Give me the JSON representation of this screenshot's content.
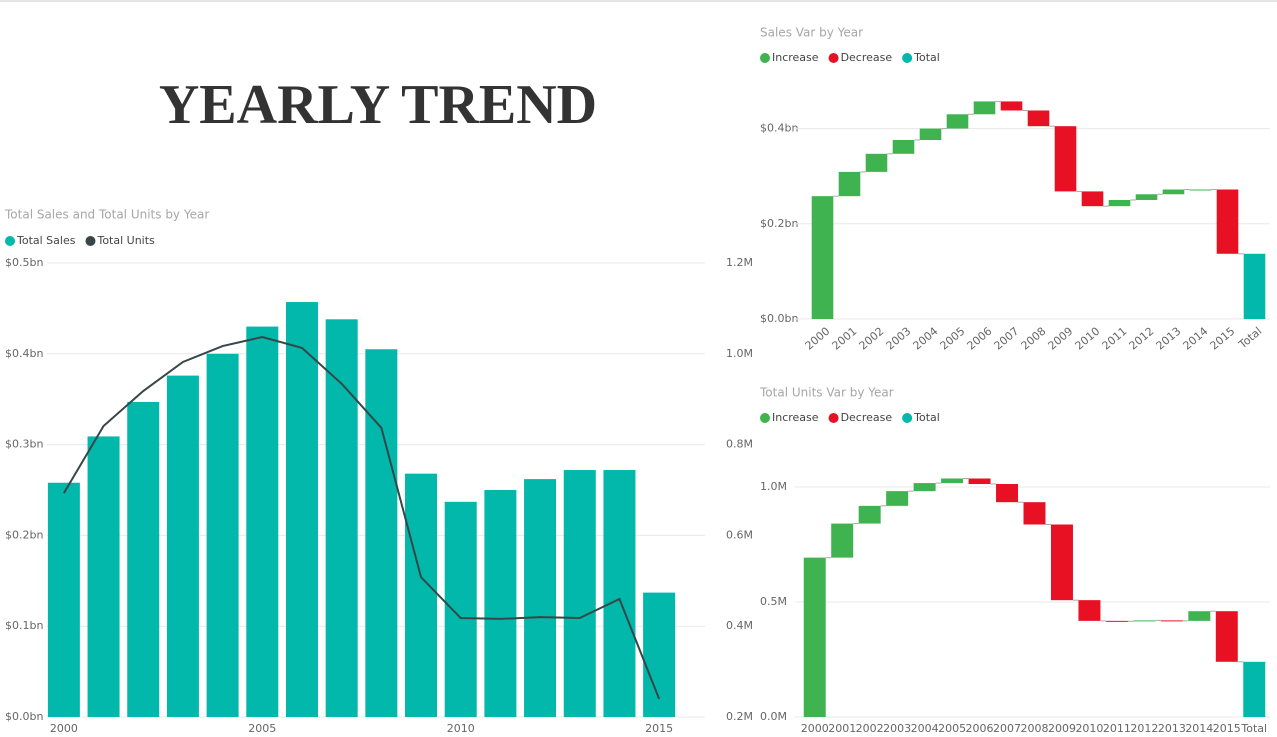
{
  "page_title": "YEARLY TREND",
  "chart_data": [
    {
      "type": "bar_line",
      "title": "Total Sales and Total Units by Year",
      "x": [
        2000,
        2001,
        2002,
        2003,
        2004,
        2005,
        2006,
        2007,
        2008,
        2009,
        2010,
        2011,
        2012,
        2013,
        2014,
        2015
      ],
      "xlim": [
        1999.6,
        2015.4
      ],
      "xticks": [
        2000,
        2005,
        2010,
        2015
      ],
      "series": [
        {
          "name": "Total Sales",
          "type": "bar",
          "color": "#01b8aa",
          "values": [
            0.258,
            0.309,
            0.347,
            0.376,
            0.4,
            0.43,
            0.457,
            0.438,
            0.405,
            0.268,
            0.237,
            0.25,
            0.262,
            0.272,
            0.272,
            0.137
          ]
        },
        {
          "name": "Total Units",
          "type": "line",
          "axis": "y2",
          "color": "#374649",
          "values": [
            0.693,
            0.841,
            0.918,
            0.982,
            1.017,
            1.037,
            1.013,
            0.934,
            0.837,
            0.508,
            0.418,
            0.416,
            0.42,
            0.418,
            0.46,
            0.24
          ]
        }
      ],
      "ylim": [
        0,
        0.5
      ],
      "yticks": [
        {
          "value": 0,
          "label": "$0.0bn"
        },
        {
          "value": 0.1,
          "label": "$0.1bn"
        },
        {
          "value": 0.2,
          "label": "$0.2bn"
        },
        {
          "value": 0.3,
          "label": "$0.3bn"
        },
        {
          "value": 0.4,
          "label": "$0.4bn"
        },
        {
          "value": 0.5,
          "label": "$0.5bn"
        }
      ],
      "y2lim": [
        0.2,
        1.2
      ],
      "y2ticks": [
        {
          "value": 0.2,
          "label": "0.2M"
        },
        {
          "value": 0.4,
          "label": "0.4M"
        },
        {
          "value": 0.6,
          "label": "0.6M"
        },
        {
          "value": 0.8,
          "label": "0.8M"
        },
        {
          "value": 1.0,
          "label": "1.0M"
        },
        {
          "value": 1.2,
          "label": "1.2M"
        }
      ],
      "grid": true,
      "legend": "top-left"
    },
    {
      "type": "waterfall",
      "title": "Sales Var by Year",
      "categories": [
        "2000",
        "2001",
        "2002",
        "2003",
        "2004",
        "2005",
        "2006",
        "2007",
        "2008",
        "2009",
        "2010",
        "2011",
        "2012",
        "2013",
        "2014",
        "2015",
        "Total"
      ],
      "values": [
        0.258,
        0.051,
        0.038,
        0.029,
        0.024,
        0.03,
        0.027,
        -0.019,
        -0.033,
        -0.137,
        -0.031,
        0.013,
        0.012,
        0.01,
        0,
        -0.135,
        0.137
      ],
      "legend_items": [
        {
          "name": "Increase",
          "color": "#3fb34f"
        },
        {
          "name": "Decrease",
          "color": "#e81123"
        },
        {
          "name": "Total",
          "color": "#01b8aa"
        }
      ],
      "ylim": [
        0,
        0.46
      ],
      "yticks": [
        {
          "value": 0,
          "label": "$0.0bn"
        },
        {
          "value": 0.2,
          "label": "$0.2bn"
        },
        {
          "value": 0.4,
          "label": "$0.4bn"
        }
      ],
      "grid": true,
      "legend": "top-left"
    },
    {
      "type": "waterfall",
      "title": "Total Units Var by Year",
      "categories": [
        "2000",
        "2001",
        "2002",
        "2003",
        "2004",
        "2005",
        "2006",
        "2007",
        "2008",
        "2009",
        "2010",
        "2011",
        "2012",
        "2013",
        "2014",
        "2015",
        "Total"
      ],
      "values": [
        0.693,
        0.148,
        0.077,
        0.064,
        0.035,
        0.02,
        -0.024,
        -0.079,
        -0.097,
        -0.329,
        -0.09,
        -0.002,
        0.004,
        -0.002,
        0.042,
        -0.22,
        0.24
      ],
      "legend_items": [
        {
          "name": "Increase",
          "color": "#3fb34f"
        },
        {
          "name": "Decrease",
          "color": "#e81123"
        },
        {
          "name": "Total",
          "color": "#01b8aa"
        }
      ],
      "ylim": [
        0,
        1.1
      ],
      "yticks": [
        {
          "value": 0,
          "label": "0.0M"
        },
        {
          "value": 0.5,
          "label": "0.5M"
        },
        {
          "value": 1.0,
          "label": "1.0M"
        }
      ],
      "grid": true,
      "legend": "top-left"
    }
  ]
}
